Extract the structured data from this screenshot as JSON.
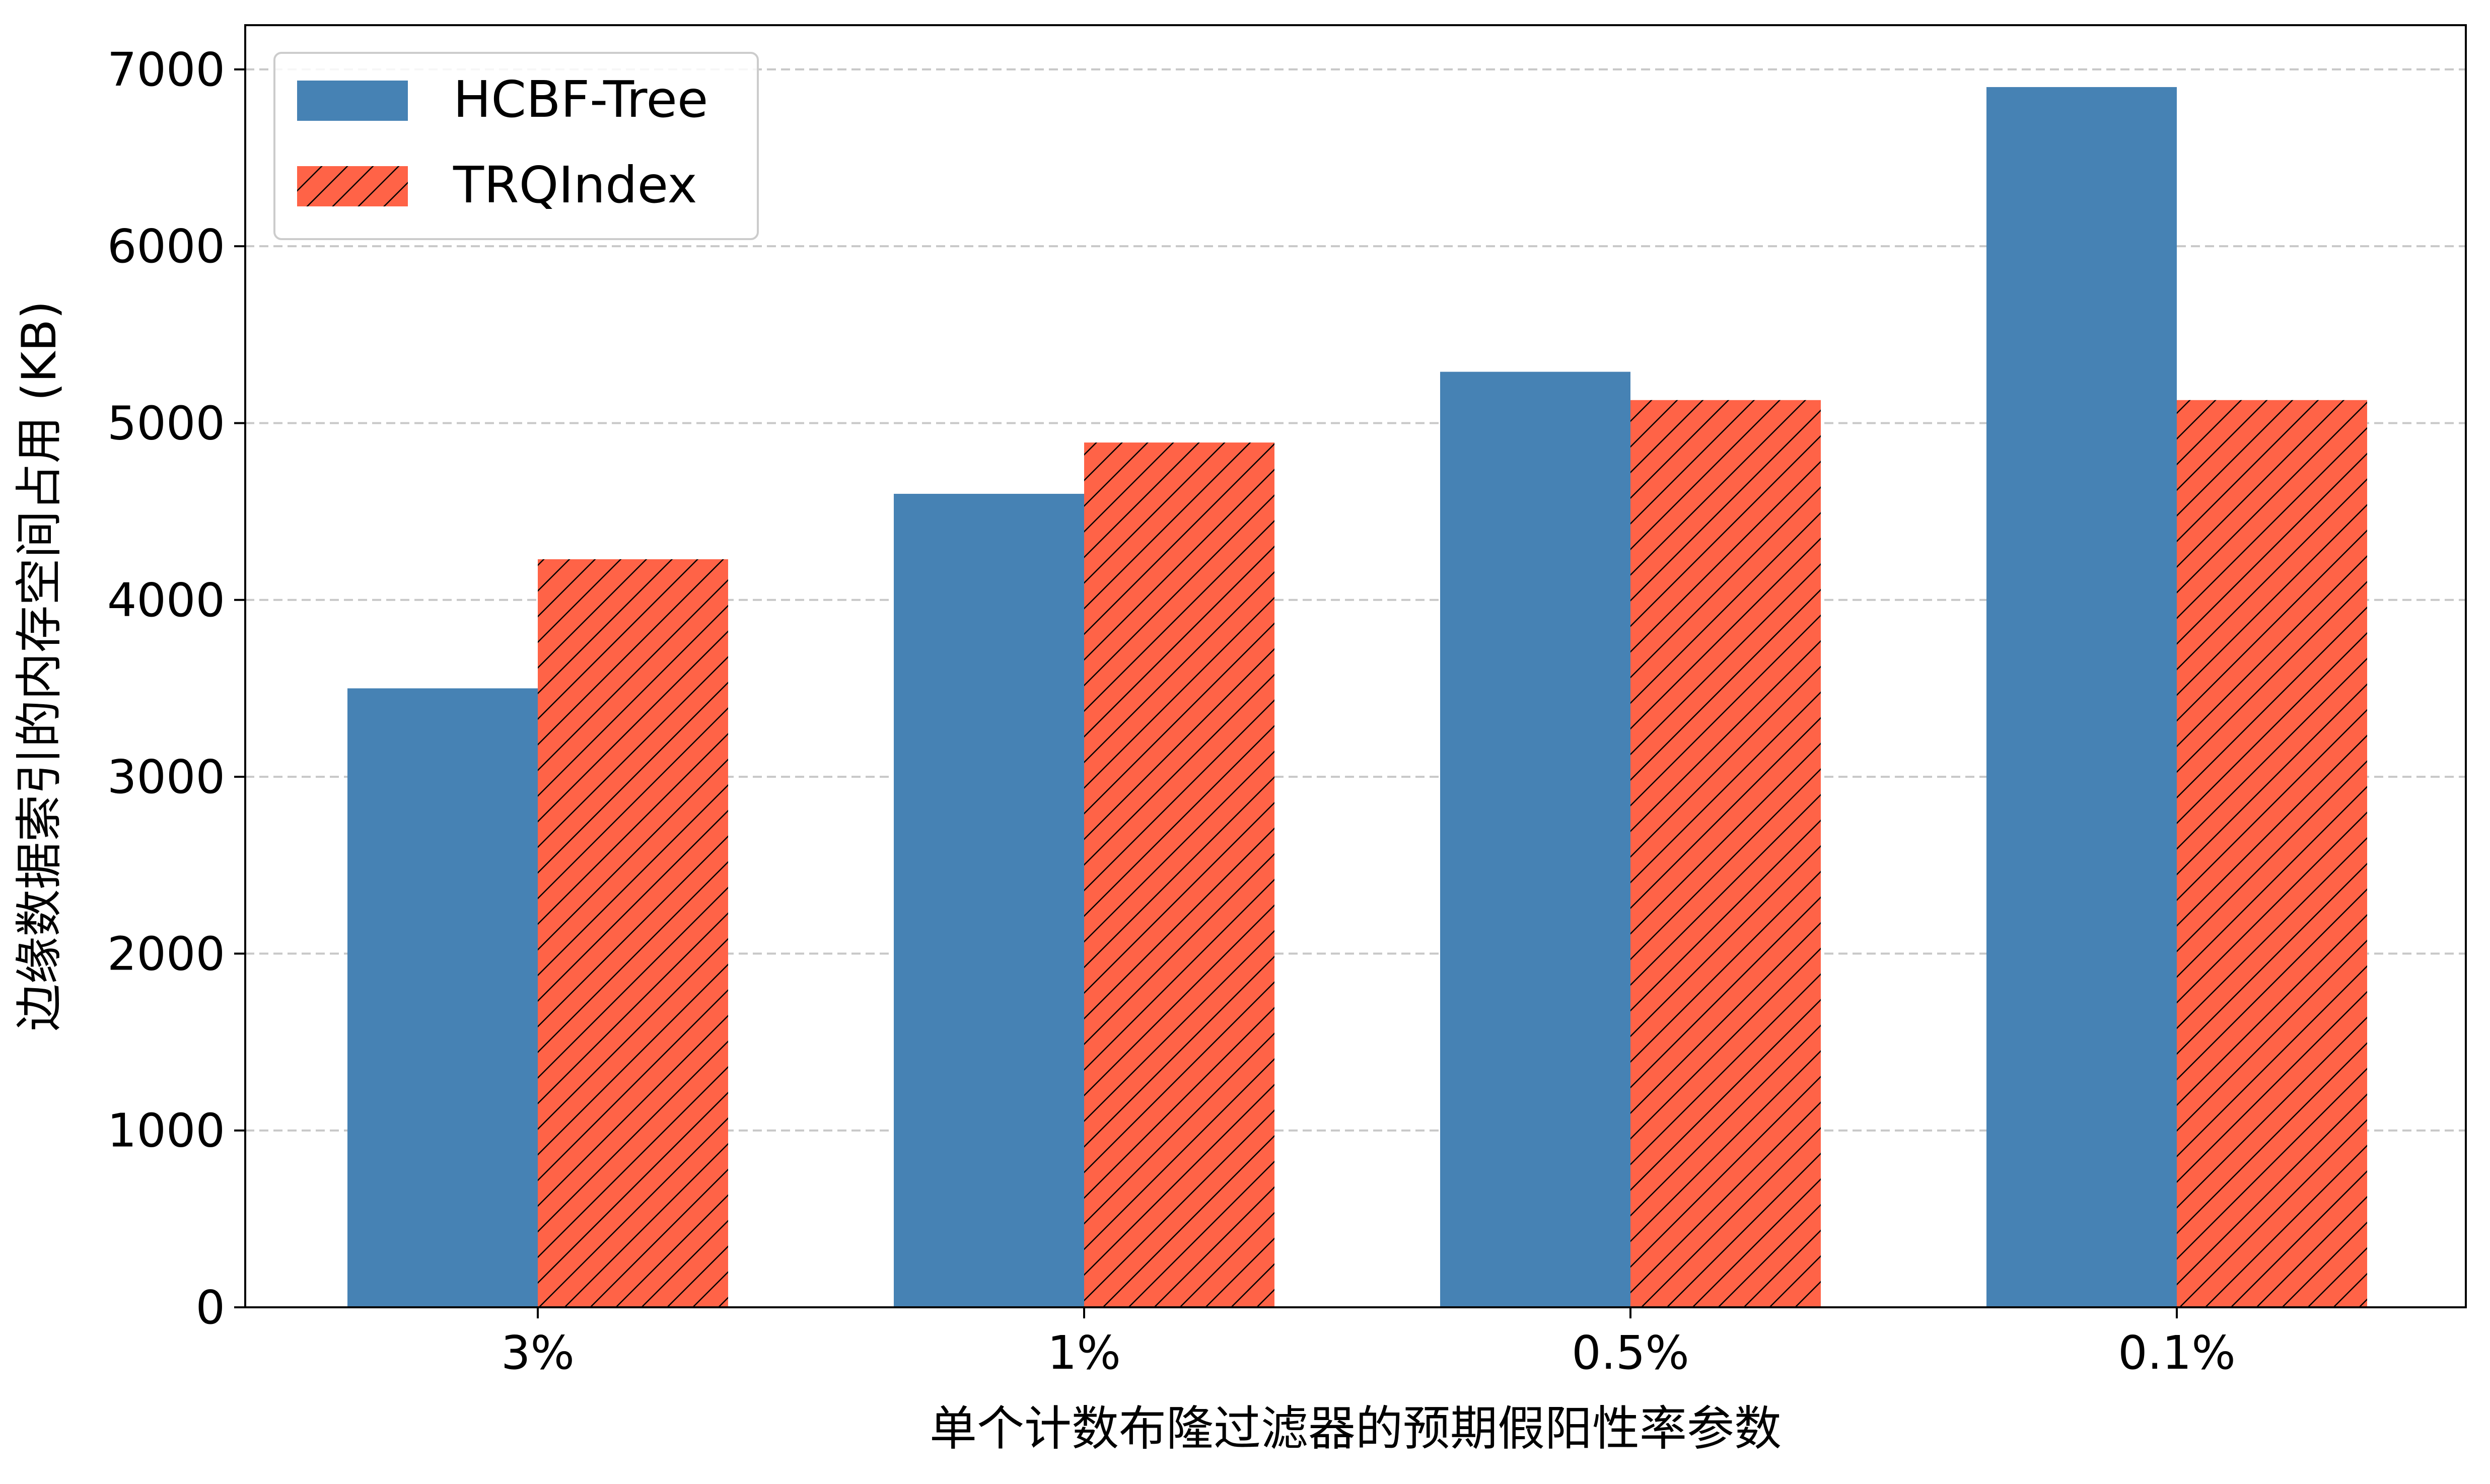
{
  "chart_data": {
    "type": "bar",
    "categories": [
      "3%",
      "1%",
      "0.5%",
      "0.1%"
    ],
    "series": [
      {
        "name": "HCBF-Tree",
        "values": [
          3500,
          4600,
          5290,
          6900
        ],
        "color": "#4682b4",
        "hatch": false
      },
      {
        "name": "TRQIndex",
        "values": [
          4230,
          4890,
          5130,
          5130
        ],
        "color": "#ff6347",
        "hatch": true
      }
    ],
    "xlabel": "单个计数布隆过滤器的预期假阳性率参数",
    "ylabel": "边缘数据索引的内存空间占用 (KB)",
    "ylim": [
      0,
      7250
    ],
    "yticks": [
      0,
      1000,
      2000,
      3000,
      4000,
      5000,
      6000,
      7000
    ],
    "grid": "y-dashed",
    "legend_position": "top-left"
  }
}
